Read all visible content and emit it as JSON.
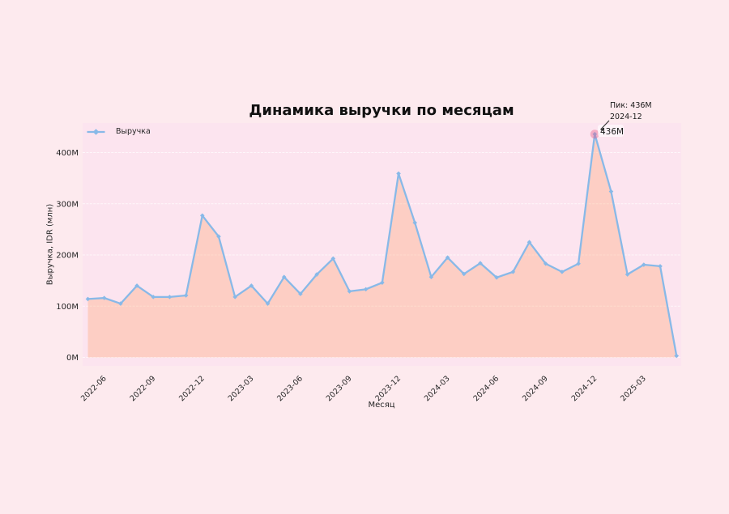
{
  "chart": {
    "title": "Динамика выручки по месяцам",
    "xlabel": "Месяц",
    "ylabel": "Выручка, IDR (млн)",
    "legend_label": "Выручка",
    "annotation": {
      "line1": "Пик: 436M",
      "line2": "2024-12"
    },
    "peak": {
      "label": "436M",
      "month": "2024-12",
      "value": 436
    }
  },
  "chart_data": {
    "type": "area",
    "title": "Динамика выручки по месяцам",
    "xlabel": "Месяц",
    "ylabel": "Выручка, IDR (млн)",
    "legend": [
      "Выручка"
    ],
    "x": [
      "2022-05",
      "2022-06",
      "2022-07",
      "2022-08",
      "2022-09",
      "2022-10",
      "2022-11",
      "2022-12",
      "2023-01",
      "2023-02",
      "2023-03",
      "2023-04",
      "2023-05",
      "2023-06",
      "2023-07",
      "2023-08",
      "2023-09",
      "2023-10",
      "2023-11",
      "2023-12",
      "2024-01",
      "2024-02",
      "2024-03",
      "2024-04",
      "2024-05",
      "2024-06",
      "2024-07",
      "2024-08",
      "2024-09",
      "2024-10",
      "2024-11",
      "2024-12",
      "2025-01",
      "2025-02",
      "2025-03",
      "2025-04",
      "2025-05"
    ],
    "series": [
      {
        "name": "Выручка",
        "values": [
          114,
          116,
          105,
          140,
          118,
          118,
          121,
          277,
          236,
          118,
          140,
          105,
          157,
          124,
          162,
          193,
          129,
          133,
          146,
          359,
          263,
          157,
          195,
          163,
          184,
          156,
          167,
          225,
          183,
          167,
          183,
          436,
          324,
          162,
          181,
          178,
          3
        ]
      }
    ],
    "yticks": [
      0,
      100,
      200,
      300,
      400
    ],
    "ytick_labels": [
      "0M",
      "100M",
      "200M",
      "300M",
      "400M"
    ],
    "xtick_labels": [
      "2022-06",
      "2022-09",
      "2022-12",
      "2023-03",
      "2023-06",
      "2023-09",
      "2023-12",
      "2024-03",
      "2024-06",
      "2024-09",
      "2024-12",
      "2025-03"
    ],
    "ylim": [
      -17,
      458
    ],
    "grid": "horizontal-dashed",
    "legend_position": "upper-left",
    "annotation": "Пик: 436M 2024-12",
    "colors": {
      "line": "#88b9e8",
      "fill": "rgba(255,150,85,0.28)",
      "figure_bg": "#fdeaee",
      "axes_bg": "#fce4ef",
      "peak_marker": "#e75480"
    }
  }
}
